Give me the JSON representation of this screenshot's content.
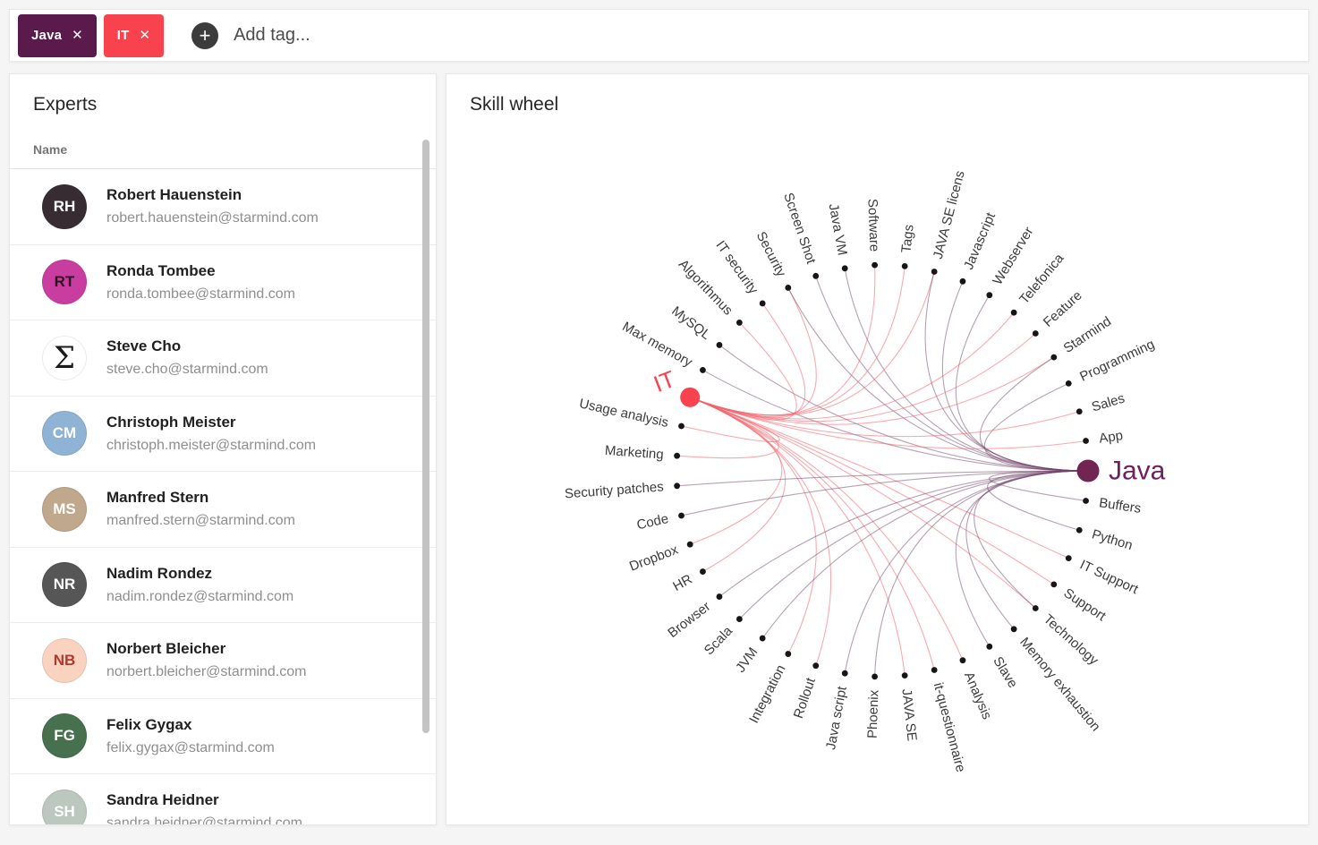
{
  "tag_bar": {
    "tags": [
      {
        "label": "Java",
        "color": "#5a1b4c"
      },
      {
        "label": "IT",
        "color": "#f8424d"
      }
    ],
    "close_icon": "✕",
    "add_icon": "+",
    "add_placeholder": "Add tag..."
  },
  "experts_panel": {
    "title": "Experts",
    "column_header": "Name",
    "experts": [
      {
        "name": "Robert Hauenstein",
        "email": "robert.hauenstein@starmind.com",
        "avatar_bg": "#372c31",
        "avatar_fg": "#ffffff",
        "avatar_glyph": "RH"
      },
      {
        "name": "Ronda Tombee",
        "email": "ronda.tombee@starmind.com",
        "avatar_bg": "#c93da0",
        "avatar_fg": "#2b1220",
        "avatar_glyph": "RT"
      },
      {
        "name": "Steve Cho",
        "email": "steve.cho@starmind.com",
        "avatar_bg": "#ffffff",
        "avatar_fg": "#1a1a1a",
        "avatar_glyph": "Σ"
      },
      {
        "name": "Christoph Meister",
        "email": "christoph.meister@starmind.com",
        "avatar_bg": "#8fb3d4",
        "avatar_fg": "#ffffff",
        "avatar_glyph": "CM"
      },
      {
        "name": "Manfred Stern",
        "email": "manfred.stern@starmind.com",
        "avatar_bg": "#c0a88d",
        "avatar_fg": "#ffffff",
        "avatar_glyph": "MS"
      },
      {
        "name": "Nadim Rondez",
        "email": "nadim.rondez@starmind.com",
        "avatar_bg": "#565656",
        "avatar_fg": "#ffffff",
        "avatar_glyph": "NR"
      },
      {
        "name": "Norbert Bleicher",
        "email": "norbert.bleicher@starmind.com",
        "avatar_bg": "#f9d2c0",
        "avatar_fg": "#b0392e",
        "avatar_glyph": "NB"
      },
      {
        "name": "Felix Gygax",
        "email": "felix.gygax@starmind.com",
        "avatar_bg": "#47704f",
        "avatar_fg": "#ffffff",
        "avatar_glyph": "FG"
      },
      {
        "name": "Sandra Heidner",
        "email": "sandra.heidner@starmind.com",
        "avatar_bg": "#bcc7c0",
        "avatar_fg": "#ffffff",
        "avatar_glyph": "SH"
      }
    ]
  },
  "skill_wheel": {
    "title": "Skill wheel",
    "hub_colors": {
      "it": "#f8424d",
      "java": "#702553"
    },
    "hub_text_colors": {
      "it": "#f8424d",
      "java": "#6e2160"
    },
    "edge_colors": {
      "it": "#f4656d",
      "java": "#6f4168"
    },
    "label_color": "#3c3c3c",
    "dot_color": "#161616",
    "nodes": [
      {
        "label": "Java",
        "hub": "java"
      },
      {
        "label": "Buffers",
        "links": [
          "java"
        ]
      },
      {
        "label": "Python",
        "links": [
          "java"
        ]
      },
      {
        "label": "IT Support",
        "links": [
          "it"
        ]
      },
      {
        "label": "Support",
        "links": [
          "it"
        ]
      },
      {
        "label": "Technology",
        "links": [
          "it",
          "java"
        ]
      },
      {
        "label": "Memory exhaustion",
        "links": [
          "java"
        ]
      },
      {
        "label": "Slave",
        "links": [
          "java"
        ]
      },
      {
        "label": "Analysis",
        "links": [
          "it"
        ]
      },
      {
        "label": "it-questionnaire",
        "links": [
          "it"
        ]
      },
      {
        "label": "JAVA SE",
        "links": [
          "it"
        ]
      },
      {
        "label": "Phoenix",
        "links": [
          "java"
        ]
      },
      {
        "label": "Java script",
        "links": [
          "java"
        ]
      },
      {
        "label": "Rollout",
        "links": [
          "it"
        ]
      },
      {
        "label": "Integration",
        "links": [
          "it"
        ]
      },
      {
        "label": "JVM",
        "links": [
          "java"
        ]
      },
      {
        "label": "Scala",
        "links": [
          "java"
        ]
      },
      {
        "label": "Browser",
        "links": [
          "java"
        ]
      },
      {
        "label": "HR",
        "links": [
          "it"
        ]
      },
      {
        "label": "Dropbox",
        "links": [
          "it"
        ]
      },
      {
        "label": "Code",
        "links": [
          "java"
        ]
      },
      {
        "label": "Security patches",
        "links": [
          "java"
        ]
      },
      {
        "label": "Marketing",
        "links": [
          "it"
        ]
      },
      {
        "label": "Usage analysis",
        "links": [
          "it"
        ]
      },
      {
        "label": "IT",
        "hub": "it"
      },
      {
        "label": "Max memory",
        "links": [
          "java"
        ]
      },
      {
        "label": "MySQL",
        "links": [
          "java"
        ]
      },
      {
        "label": "Algorithmus",
        "links": [
          "it"
        ]
      },
      {
        "label": "IT security",
        "links": [
          "it"
        ]
      },
      {
        "label": "Security",
        "links": [
          "it",
          "java"
        ]
      },
      {
        "label": "Screen Shot",
        "links": [
          "java"
        ]
      },
      {
        "label": "Java VM",
        "links": [
          "java"
        ]
      },
      {
        "label": "Software",
        "links": [
          "it"
        ]
      },
      {
        "label": "Tags",
        "links": [
          "it"
        ]
      },
      {
        "label": "JAVA SE licens",
        "links": [
          "it",
          "java"
        ]
      },
      {
        "label": "Javascript",
        "links": [
          "java"
        ]
      },
      {
        "label": "Webserver",
        "links": [
          "java"
        ]
      },
      {
        "label": "Telefonica",
        "links": [
          "it"
        ]
      },
      {
        "label": "Feature",
        "links": [
          "it"
        ]
      },
      {
        "label": "Starmind",
        "links": [
          "it",
          "java"
        ]
      },
      {
        "label": "Programming",
        "links": [
          "java"
        ]
      },
      {
        "label": "Sales",
        "links": [
          "it"
        ]
      },
      {
        "label": "App",
        "links": [
          "it"
        ]
      }
    ]
  }
}
